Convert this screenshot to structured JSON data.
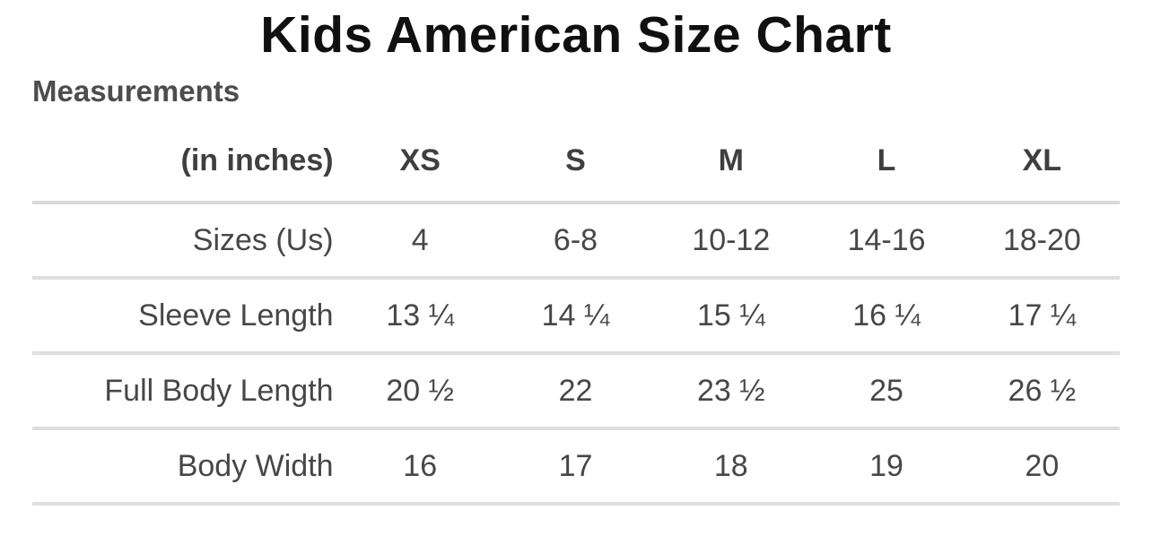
{
  "page": {
    "title": "Kids American Size Chart",
    "section_heading": "Measurements"
  },
  "colors": {
    "title_text": "#101010",
    "heading_text": "#4d4d4d",
    "table_text": "#474747",
    "divider": "#d9d9d9",
    "background": "#ffffff"
  },
  "chart_data": {
    "type": "table",
    "title": "Kids American Size Chart",
    "subtitle": "Measurements",
    "unit_label": "(in inches)",
    "columns": [
      "XS",
      "S",
      "M",
      "L",
      "XL"
    ],
    "rows": [
      {
        "label": "Sizes (Us)",
        "values": [
          "4",
          "6-8",
          "10-12",
          "14-16",
          "18-20"
        ]
      },
      {
        "label": "Sleeve Length",
        "values": [
          "13 ¼",
          "14 ¼",
          "15 ¼",
          "16 ¼",
          "17 ¼"
        ]
      },
      {
        "label": "Full Body Length",
        "values": [
          "20 ½",
          "22",
          "23 ½",
          "25",
          "26 ½"
        ]
      },
      {
        "label": "Body Width",
        "values": [
          "16",
          "17",
          "18",
          "19",
          "20"
        ]
      }
    ],
    "layout": {
      "header_bold": true,
      "row_dividers": true,
      "label_alignment": "right",
      "value_alignment": "center"
    }
  }
}
